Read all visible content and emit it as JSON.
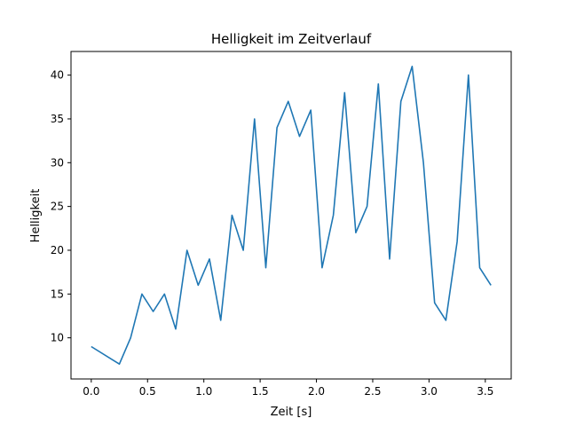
{
  "chart_data": {
    "type": "line",
    "title": "Helligkeit im Zeitverlauf",
    "xlabel": "Zeit [s]",
    "ylabel": "Helligkeit",
    "xlim": [
      -0.18,
      3.73
    ],
    "ylim": [
      5.3,
      42.7
    ],
    "xticks": [
      0.0,
      0.5,
      1.0,
      1.5,
      2.0,
      2.5,
      3.0,
      3.5
    ],
    "xtick_labels": [
      "0.0",
      "0.5",
      "1.0",
      "1.5",
      "2.0",
      "2.5",
      "3.0",
      "3.5"
    ],
    "yticks": [
      10,
      15,
      20,
      25,
      30,
      35,
      40
    ],
    "ytick_labels": [
      "10",
      "15",
      "20",
      "25",
      "30",
      "35",
      "40"
    ],
    "grid": false,
    "color": "#1f77b4",
    "x": [
      0.0,
      0.25,
      0.35,
      0.45,
      0.55,
      0.65,
      0.75,
      0.85,
      0.95,
      1.05,
      1.15,
      1.25,
      1.35,
      1.45,
      1.55,
      1.65,
      1.75,
      1.85,
      1.95,
      2.05,
      2.15,
      2.25,
      2.35,
      2.45,
      2.55,
      2.65,
      2.75,
      2.85,
      2.95,
      3.05,
      3.15,
      3.25,
      3.35,
      3.45,
      3.55
    ],
    "y": [
      9,
      7,
      10,
      15,
      13,
      15,
      11,
      20,
      16,
      19,
      12,
      24,
      20,
      35,
      18,
      34,
      37,
      33,
      36,
      18,
      24,
      38,
      22,
      25,
      39,
      19,
      37,
      41,
      30,
      14,
      12,
      21,
      40,
      18,
      16
    ]
  }
}
